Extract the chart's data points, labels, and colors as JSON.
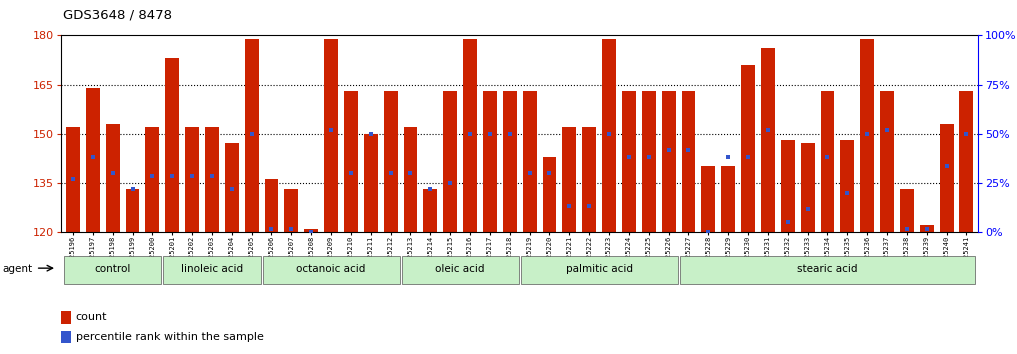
{
  "title": "GDS3648 / 8478",
  "samples": [
    "GSM525196",
    "GSM525197",
    "GSM525198",
    "GSM525199",
    "GSM525200",
    "GSM525201",
    "GSM525202",
    "GSM525203",
    "GSM525204",
    "GSM525205",
    "GSM525206",
    "GSM525207",
    "GSM525208",
    "GSM525209",
    "GSM525210",
    "GSM525211",
    "GSM525212",
    "GSM525213",
    "GSM525214",
    "GSM525215",
    "GSM525216",
    "GSM525217",
    "GSM525218",
    "GSM525219",
    "GSM525220",
    "GSM525221",
    "GSM525222",
    "GSM525223",
    "GSM525224",
    "GSM525225",
    "GSM525226",
    "GSM525227",
    "GSM525228",
    "GSM525229",
    "GSM525230",
    "GSM525231",
    "GSM525232",
    "GSM525233",
    "GSM525234",
    "GSM525235",
    "GSM525236",
    "GSM525237",
    "GSM525238",
    "GSM525239",
    "GSM525240",
    "GSM525241"
  ],
  "bar_heights": [
    152,
    164,
    153,
    133,
    152,
    173,
    152,
    152,
    147,
    179,
    136,
    133,
    121,
    179,
    163,
    150,
    163,
    152,
    133,
    163,
    179,
    163,
    163,
    163,
    143,
    152,
    152,
    179,
    163,
    163,
    163,
    163,
    140,
    140,
    171,
    176,
    148,
    147,
    163,
    148,
    179,
    163,
    133,
    122,
    153,
    163
  ],
  "blue_markers": [
    136,
    143,
    138,
    133,
    137,
    137,
    137,
    137,
    133,
    150,
    121,
    121,
    120,
    151,
    138,
    150,
    138,
    138,
    133,
    135,
    150,
    150,
    150,
    138,
    138,
    128,
    128,
    150,
    143,
    143,
    145,
    145,
    120,
    143,
    143,
    151,
    123,
    127,
    143,
    132,
    150,
    151,
    121,
    121,
    140,
    150
  ],
  "groups": [
    {
      "label": "control",
      "start": 0,
      "end": 4
    },
    {
      "label": "linoleic acid",
      "start": 5,
      "end": 9
    },
    {
      "label": "octanoic acid",
      "start": 10,
      "end": 16
    },
    {
      "label": "oleic acid",
      "start": 17,
      "end": 22
    },
    {
      "label": "palmitic acid",
      "start": 23,
      "end": 30
    },
    {
      "label": "stearic acid",
      "start": 31,
      "end": 45
    }
  ],
  "bar_color": "#cc2200",
  "blue_color": "#3355cc",
  "ymin": 120,
  "ymax": 180,
  "yticks_left": [
    120,
    135,
    150,
    165,
    180
  ],
  "yticks_right_pct": [
    0,
    25,
    50,
    75,
    100
  ],
  "group_fill_color": "#c8f0c8",
  "legend_items": [
    {
      "color": "#cc2200",
      "label": "count"
    },
    {
      "color": "#3355cc",
      "label": "percentile rank within the sample"
    }
  ]
}
